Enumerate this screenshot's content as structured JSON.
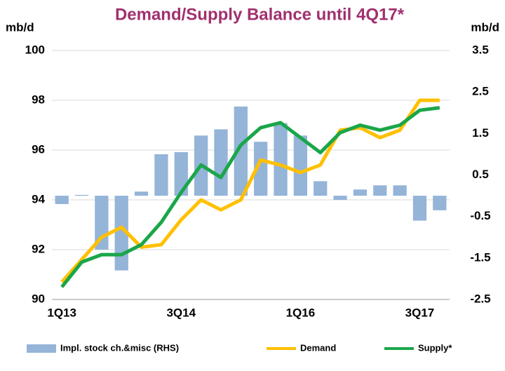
{
  "chart_data": {
    "type": "bar-line",
    "title": "Demand/Supply Balance until 4Q17*",
    "y_label": "mb/d",
    "y2_label": "mb/d",
    "categories": [
      "1Q13",
      null,
      null,
      null,
      null,
      null,
      "3Q14",
      null,
      null,
      null,
      null,
      null,
      "1Q16",
      null,
      null,
      null,
      null,
      null,
      "3Q17",
      null
    ],
    "series": [
      {
        "name": "Impl. stock ch.&misc (RHS)",
        "color": "#94b4d8",
        "axis": "y2",
        "kind": "bar",
        "values": [
          -0.2,
          0.02,
          -1.3,
          -1.8,
          0.1,
          1.0,
          1.05,
          1.45,
          1.6,
          2.15,
          1.3,
          1.75,
          1.45,
          0.35,
          -0.1,
          0.15,
          0.25,
          0.25,
          -0.6,
          -0.35
        ]
      },
      {
        "name": "Demand",
        "color": "#ffc000",
        "kind": "line",
        "values": [
          90.7,
          91.6,
          92.5,
          92.9,
          92.1,
          92.2,
          93.2,
          94.0,
          93.6,
          94.0,
          95.6,
          95.4,
          95.1,
          95.4,
          96.8,
          96.9,
          96.5,
          96.8,
          98.0,
          98.0
        ]
      },
      {
        "name": "Supply*",
        "color": "#1aa64a",
        "kind": "line",
        "values": [
          90.5,
          91.5,
          91.8,
          91.8,
          92.2,
          93.1,
          94.3,
          95.4,
          94.9,
          96.2,
          96.9,
          97.1,
          96.5,
          95.9,
          96.7,
          97.0,
          96.8,
          97.0,
          97.6,
          97.7
        ]
      }
    ],
    "ylim": [
      90,
      100
    ],
    "yticks": [
      90,
      92,
      94,
      96,
      98,
      100
    ],
    "y2lim": [
      -2.5,
      3.5
    ],
    "y2ticks": [
      -2.5,
      -1.5,
      -0.5,
      0.5,
      1.5,
      2.5,
      3.5
    ],
    "grid": true,
    "legend": "bottom"
  }
}
